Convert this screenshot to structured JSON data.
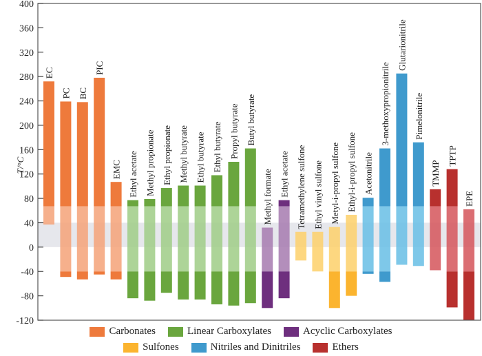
{
  "chart_data": {
    "type": "bar",
    "subtype": "floating-range",
    "title": "",
    "xlabel": "",
    "ylabel": "T/°C",
    "ylim": [
      -120,
      400
    ],
    "yticks": [
      400,
      360,
      320,
      280,
      240,
      200,
      160,
      120,
      80,
      40,
      0,
      -40,
      -80,
      -120
    ],
    "grid": false,
    "highlight_band": {
      "from": 0,
      "to": 40,
      "color": "#e6e7ec"
    },
    "pale_zone": {
      "from": -40,
      "to": 67
    },
    "legend_position": "bottom",
    "groups": [
      {
        "name": "Carbonates",
        "color": "#ee7a3c",
        "pale": "#f5a57c"
      },
      {
        "name": "Linear Carboxylates",
        "color": "#6aa63e",
        "pale": "#a2ce8a"
      },
      {
        "name": "Acyclic Carboxylates",
        "color": "#6e2f7e",
        "pale": "#a87eb2"
      },
      {
        "name": "Sulfones",
        "color": "#fbb42f",
        "pale": "#fdd26e"
      },
      {
        "name": "Nitriles and Dinitriles",
        "color": "#3f9acd",
        "pale": "#6cc0e6"
      },
      {
        "name": "Ethers",
        "color": "#b8302e",
        "pale": "#d65a60"
      }
    ],
    "bars": [
      {
        "label": "EC",
        "group": 0,
        "low": 37,
        "high": 272
      },
      {
        "label": "PC",
        "group": 0,
        "low": -49,
        "high": 239
      },
      {
        "label": "BC",
        "group": 0,
        "low": -53,
        "high": 238
      },
      {
        "label": "PIC",
        "group": 0,
        "low": -45,
        "high": 278
      },
      {
        "label": "EMC",
        "group": 0,
        "low": -53,
        "high": 107
      },
      {
        "label": "Ethyl acetate",
        "group": 1,
        "low": -84,
        "high": 77
      },
      {
        "label": "Methyl propionate",
        "group": 1,
        "low": -88,
        "high": 79
      },
      {
        "label": "Ethyl propionate",
        "group": 1,
        "low": -75,
        "high": 97
      },
      {
        "label": "Methyl butyrate",
        "group": 1,
        "low": -86,
        "high": 101
      },
      {
        "label": "Ethyl butyrate",
        "group": 1,
        "low": -86,
        "high": 101
      },
      {
        "label": "Ethyl butyrate",
        "group": 1,
        "low": -94,
        "high": 118
      },
      {
        "label": "Propyl butyrate",
        "group": 1,
        "low": -96,
        "high": 140
      },
      {
        "label": "Butyl butyrate",
        "group": 1,
        "low": -92,
        "high": 162
      },
      {
        "label": "Methyl formate",
        "group": 2,
        "low": -100,
        "high": 32
      },
      {
        "label": "Ethyl acetate",
        "group": 2,
        "low": -84,
        "high": 77
      },
      {
        "label": "Tetramethylene sulfone",
        "group": 3,
        "low": -22,
        "high": 25
      },
      {
        "label": "Ethyl vinyl sulfone",
        "group": 3,
        "low": -40,
        "high": 25
      },
      {
        "label": "Metyl-i-propyl sulfone",
        "group": 3,
        "low": -100,
        "high": 33
      },
      {
        "label": "Ethyl-i-propyl sulfone",
        "group": 3,
        "low": -80,
        "high": 53
      },
      {
        "label": "Acetonitrile",
        "group": 4,
        "low": -44,
        "high": 81
      },
      {
        "label": "3-methoxypropionitrile",
        "group": 4,
        "low": -57,
        "high": 162
      },
      {
        "label": "Glutarionitrile",
        "group": 4,
        "low": -29,
        "high": 285
      },
      {
        "label": "Pimelonitrile",
        "group": 4,
        "low": -31,
        "high": 172
      },
      {
        "label": "TMMP",
        "group": 5,
        "low": -38,
        "high": 95
      },
      {
        "label": "TPTP",
        "group": 5,
        "low": -99,
        "high": 128
      },
      {
        "label": "EPE",
        "group": 5,
        "low": -120,
        "high": 62
      }
    ]
  },
  "legend": {
    "rows": [
      [
        0,
        1,
        2
      ],
      [
        3,
        4,
        5
      ]
    ]
  }
}
